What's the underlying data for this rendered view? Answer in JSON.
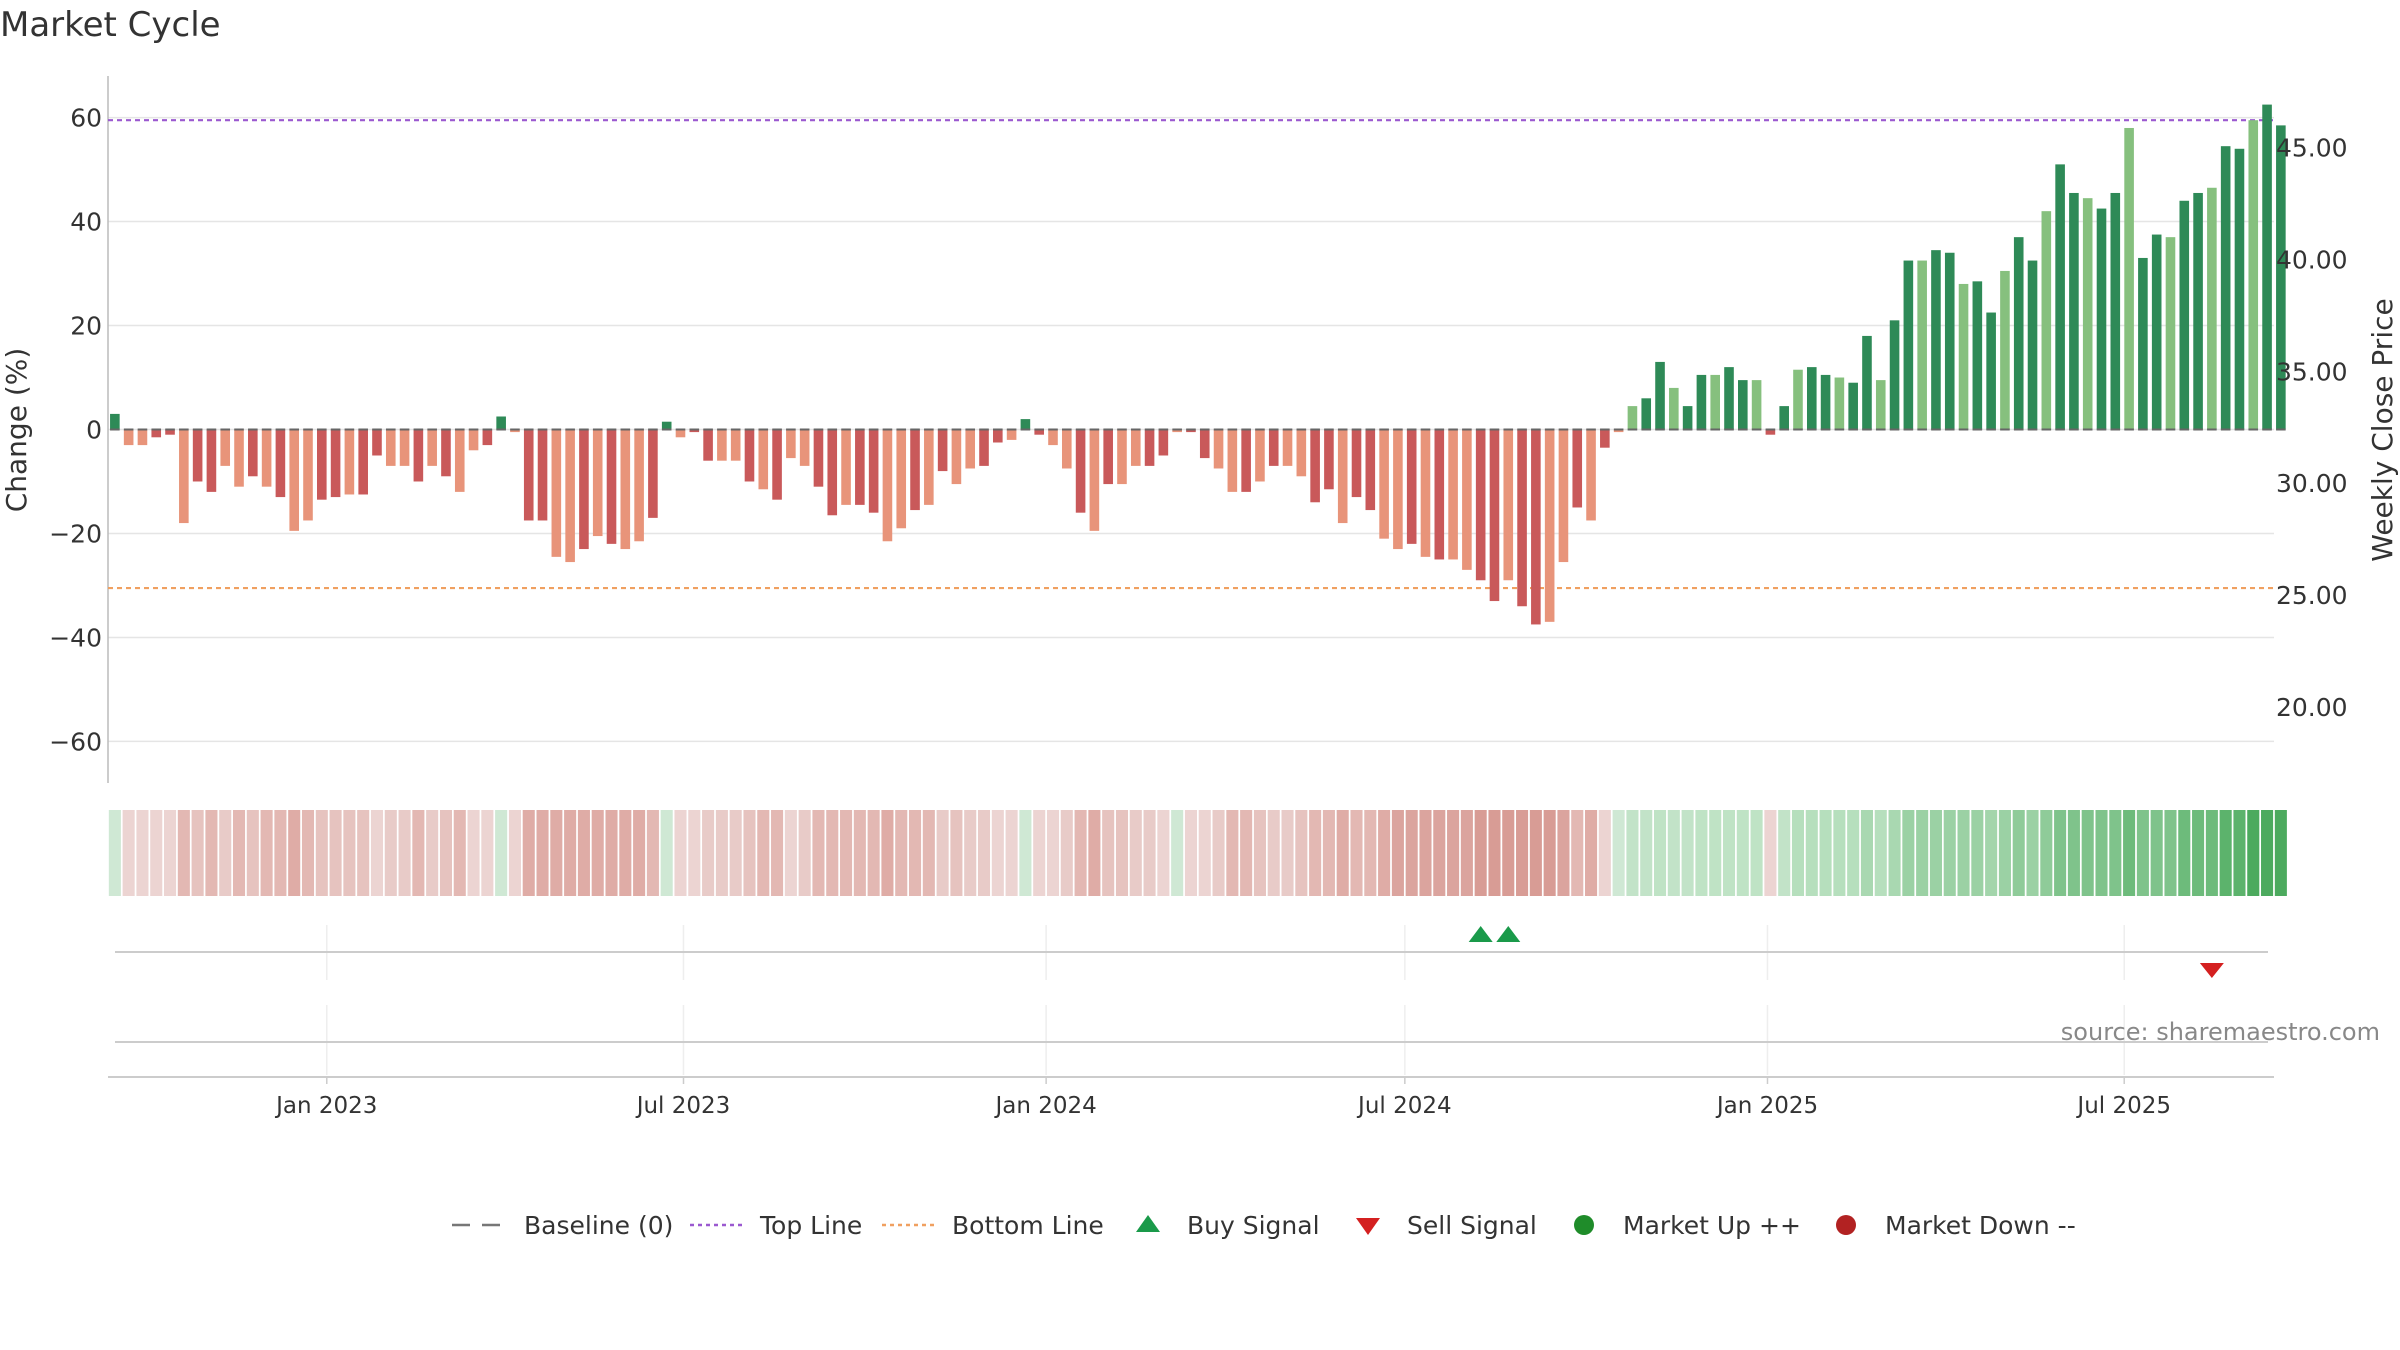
{
  "chart_data": {
    "type": "bar",
    "title": "Market Cycle",
    "ylabel": "Change (%)",
    "y2label": "Weekly Close Price",
    "ylim": [
      -68,
      68
    ],
    "y2lim": [
      16.6,
      48.2
    ],
    "yticks": [
      60,
      40,
      20,
      0,
      -20,
      -40,
      -60
    ],
    "ytick_labels": [
      "60",
      "40",
      "20",
      "0",
      "−20",
      "−40",
      "−60"
    ],
    "y2ticks": [
      45,
      40,
      35,
      30,
      25,
      20
    ],
    "y2tick_labels": [
      "45.00",
      "40.00",
      "35.00",
      "30.00",
      "25.00",
      "20.00"
    ],
    "top_line": 59.5,
    "bottom_line": -30.5,
    "baseline": 0,
    "x_range": [
      "2022-09-12",
      "2025-09-15"
    ],
    "xticks": [
      "2023-01-01",
      "2023-07-01",
      "2024-01-01",
      "2024-07-01",
      "2025-01-01",
      "2025-07-01"
    ],
    "xtick_labels": [
      "Jan 2023",
      "Jul 2023",
      "Jan 2024",
      "Jul 2024",
      "Jan 2025",
      "Jul 2025"
    ],
    "first_week": "2022-09-12",
    "values": [
      3,
      -3,
      -3,
      -1.5,
      -1,
      -18,
      -10,
      -12,
      -7,
      -11,
      -9,
      -11,
      -13,
      -19.5,
      -17.5,
      -13.5,
      -13,
      -12.5,
      -12.5,
      -5,
      -7,
      -7,
      -10,
      -7,
      -9,
      -12,
      -4,
      -3,
      2.5,
      -0.5,
      -17.5,
      -17.5,
      -24.5,
      -25.5,
      -23,
      -20.5,
      -22,
      -23,
      -21.5,
      -17,
      1.5,
      -1.5,
      -0.5,
      -6,
      -6,
      -6,
      -10,
      -11.5,
      -13.5,
      -5.5,
      -7,
      -11,
      -16.5,
      -14.5,
      -14.5,
      -16,
      -21.5,
      -19,
      -15.5,
      -14.5,
      -8,
      -10.5,
      -7.5,
      -7,
      -2.5,
      -2,
      2,
      -1,
      -3,
      -7.5,
      -16,
      -19.5,
      -10.5,
      -10.5,
      -7,
      -7,
      -5,
      -0.5,
      -0.5,
      -5.5,
      -7.5,
      -12,
      -12,
      -10,
      -7,
      -7,
      -9,
      -14,
      -11.5,
      -18,
      -13,
      -15.5,
      -21,
      -23,
      -22,
      -24.5,
      -25,
      -25,
      -27,
      -29,
      -33,
      -29,
      -34,
      -37.5,
      -37,
      -25.5,
      -15,
      -17.5,
      -3.5,
      -0.5,
      4.5,
      6,
      13,
      8,
      4.5,
      10.5,
      10.5,
      12,
      9.5,
      9.5,
      -1,
      4.5,
      11.5,
      12,
      10.5,
      10,
      9,
      18,
      9.5,
      21,
      32.5,
      32.5,
      34.5,
      34,
      28,
      28.5,
      22.5,
      30.5,
      37,
      32.5,
      42,
      51,
      45.5,
      44.5,
      42.5,
      45.5,
      58,
      33,
      37.5,
      37,
      44,
      45.5,
      46.5,
      54.5,
      54,
      59.5,
      62.5,
      58.5
    ],
    "heat_strip": [
      "#cfe8d4",
      "#ecd4d2",
      "#ecd4d2",
      "#ecd4d2",
      "#ecd4d2",
      "#e3b8b3",
      "#e6c3bf",
      "#e3b8b3",
      "#e8cbc8",
      "#e3b8b3",
      "#e6c3bf",
      "#e3b8b3",
      "#e3b8b3",
      "#dfaca6",
      "#e3b8b3",
      "#e6c3bf",
      "#e6c3bf",
      "#e6c3bf",
      "#e6c3bf",
      "#ecd4d2",
      "#e8cbc8",
      "#e8cbc8",
      "#e3b8b3",
      "#e8cbc8",
      "#e6c3bf",
      "#e3b8b3",
      "#ecd4d2",
      "#ecd4d2",
      "#cfe8d4",
      "#ecd4d2",
      "#dfaca6",
      "#dfaca6",
      "#dfaca6",
      "#dfaca6",
      "#dfaca6",
      "#dfaca6",
      "#dfaca6",
      "#dfaca6",
      "#dfaca6",
      "#e3b8b3",
      "#cfe8d4",
      "#ecd4d2",
      "#ecd4d2",
      "#e8cbc8",
      "#e8cbc8",
      "#e8cbc8",
      "#e6c3bf",
      "#e3b8b3",
      "#e3b8b3",
      "#ecd4d2",
      "#e8cbc8",
      "#e3b8b3",
      "#e3b8b3",
      "#e3b8b3",
      "#e3b8b3",
      "#e3b8b3",
      "#dfaca6",
      "#e3b8b3",
      "#e3b8b3",
      "#e3b8b3",
      "#e8cbc8",
      "#e6c3bf",
      "#e8cbc8",
      "#e8cbc8",
      "#ecd4d2",
      "#ecd4d2",
      "#cfe8d4",
      "#ecd4d2",
      "#ecd4d2",
      "#e8cbc8",
      "#e3b8b3",
      "#dfaca6",
      "#e6c3bf",
      "#e6c3bf",
      "#e8cbc8",
      "#e8cbc8",
      "#ecd4d2",
      "#cfe8d4",
      "#ecd4d2",
      "#ecd4d2",
      "#e8cbc8",
      "#e3b8b3",
      "#e3b8b3",
      "#e6c3bf",
      "#e8cbc8",
      "#e8cbc8",
      "#e6c3bf",
      "#e3b8b3",
      "#e3b8b3",
      "#dfaca6",
      "#e3b8b3",
      "#e3b8b3",
      "#dfaca6",
      "#dba49e",
      "#dba49e",
      "#dba49e",
      "#dba49e",
      "#dba49e",
      "#dba49e",
      "#d89c95",
      "#d89c95",
      "#d89c95",
      "#d89c95",
      "#d89c95",
      "#d89c95",
      "#dba49e",
      "#e3b8b3",
      "#dfaca6",
      "#ecd4d2",
      "#cfe8d4",
      "#c2e3c8",
      "#c2e3c8",
      "#bfe3c5",
      "#c2e3c8",
      "#c2e3c8",
      "#bfe3c5",
      "#bfe3c5",
      "#bfe3c5",
      "#bfe3c5",
      "#bfe3c5",
      "#ecd4d2",
      "#c2e3c8",
      "#b6dfbd",
      "#b6dfbd",
      "#b6dfbd",
      "#b6dfbd",
      "#b6dfbd",
      "#a9d8b1",
      "#b6dfbd",
      "#a9d8b1",
      "#9bd1a4",
      "#9bd1a4",
      "#9bd1a4",
      "#9bd1a4",
      "#9bd1a4",
      "#9bd1a4",
      "#a3d5ab",
      "#9bd1a4",
      "#8fcb99",
      "#9bd1a4",
      "#8fcb99",
      "#7fc38b",
      "#7fc38b",
      "#7fc38b",
      "#7fc38b",
      "#7fc38b",
      "#6dbb7b",
      "#7fc38b",
      "#7fc38b",
      "#7fc38b",
      "#6dbb7b",
      "#6dbb7b",
      "#6dbb7b",
      "#5cb36c",
      "#5cb36c",
      "#4caa5e",
      "#4caa5e",
      "#4caa5e"
    ],
    "buy_signals": [
      99,
      101
    ],
    "sell_signals": [
      152
    ],
    "source": "source: sharemaestro.com",
    "legend": [
      {
        "label": "Baseline (0)",
        "symbol": "dash",
        "color": "#777777"
      },
      {
        "label": "Top Line",
        "symbol": "dotted",
        "color": "#9b59d0"
      },
      {
        "label": "Bottom Line",
        "symbol": "dotted",
        "color": "#f0a060"
      },
      {
        "label": "Buy Signal",
        "symbol": "triangle-up",
        "color": "#1a9a4a"
      },
      {
        "label": "Sell Signal",
        "symbol": "triangle-down",
        "color": "#d42020"
      },
      {
        "label": "Market Up ++",
        "symbol": "circle",
        "color": "#1f8c2a"
      },
      {
        "label": "Market Down --",
        "symbol": "circle",
        "color": "#b22222"
      }
    ],
    "colors": {
      "down_dark": "#c9595a",
      "down_light": "#e8947a",
      "up_dark": "#2e8a57",
      "up_light": "#86c07e",
      "grid": "#e5e5e5",
      "axis": "#bbbbbb"
    }
  }
}
